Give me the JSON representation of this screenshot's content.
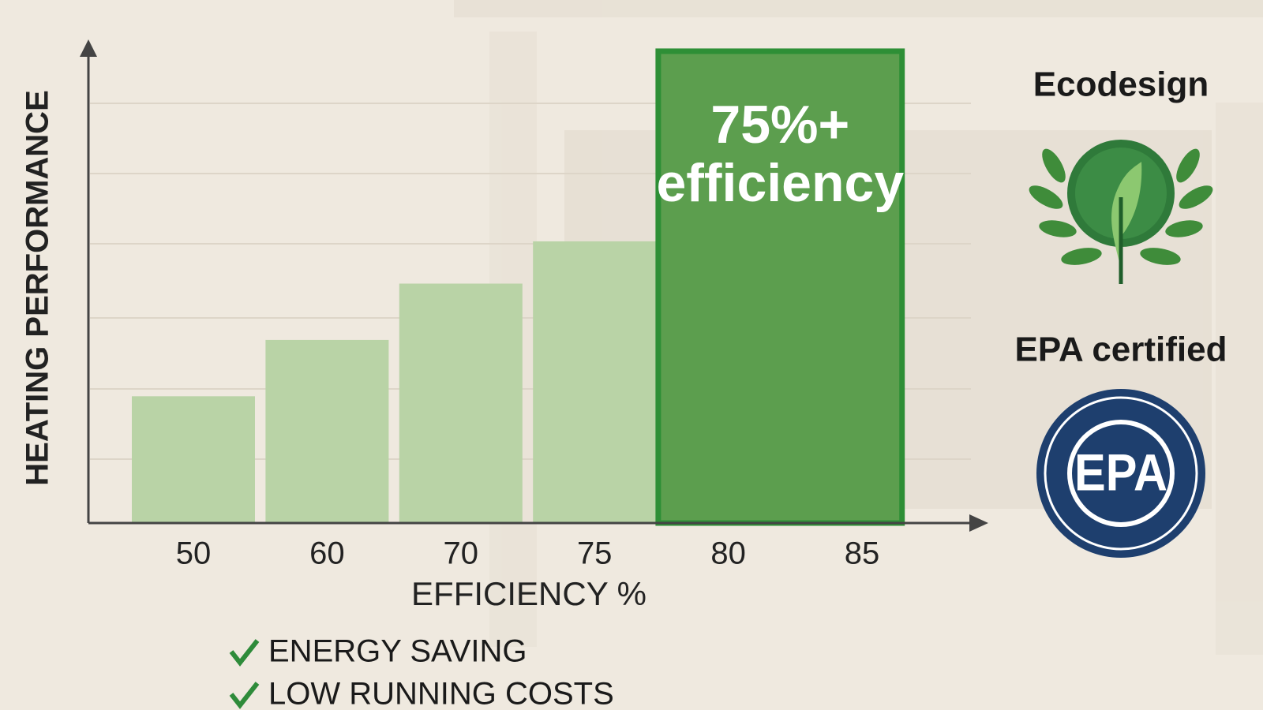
{
  "chart_data": {
    "type": "bar",
    "x_label": "EFFICIENCY %",
    "y_label": "HEATING PERFORMANCE",
    "categories": [
      "50",
      "60",
      "70",
      "75",
      "80",
      "85"
    ],
    "values": [
      1.8,
      2.6,
      3.4,
      4.0,
      6.7,
      null
    ],
    "colors": [
      "#b9d3a6",
      "#b9d3a6",
      "#b9d3a6",
      "#b9d3a6",
      "#5c9e4e",
      null
    ],
    "ylim": [
      0,
      6.8
    ],
    "annotation": [
      "75%+",
      "efficiency"
    ],
    "badges": [
      {
        "title": "Ecodesign"
      },
      {
        "title": "EPA certified",
        "text": "EPA"
      }
    ],
    "features": [
      "ENERGY SAVING",
      "LOW RUNNING COSTS"
    ]
  }
}
